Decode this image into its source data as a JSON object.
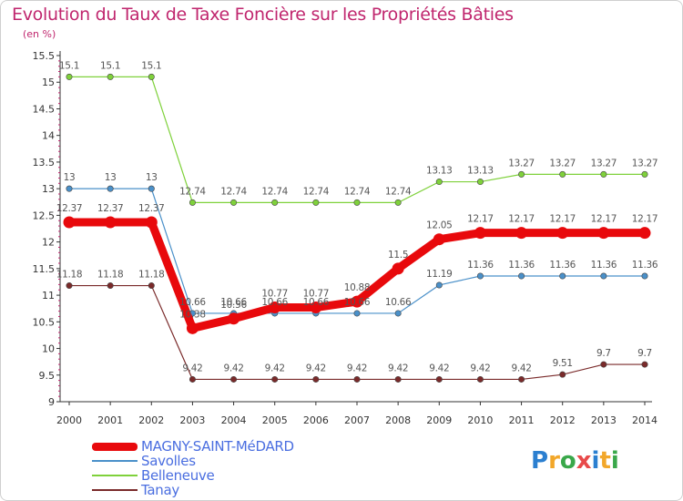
{
  "chart": {
    "title": "Evolution du Taux de Taxe Foncière sur les Propriétés Bâties",
    "unit": "(en %)"
  },
  "brand": {
    "logo_text": "Proxiti",
    "letters": [
      {
        "ch": "P",
        "color": "#2b7fd0"
      },
      {
        "ch": "r",
        "color": "#f2a72a"
      },
      {
        "ch": "o",
        "color": "#3aa84a"
      },
      {
        "ch": "x",
        "color": "#e84a4a"
      },
      {
        "ch": "i",
        "color": "#2b7fd0"
      },
      {
        "ch": "t",
        "color": "#f2a72a"
      },
      {
        "ch": "i",
        "color": "#3aa84a"
      }
    ]
  },
  "chart_data": {
    "type": "line",
    "title": "Evolution du Taux de Taxe Foncière sur les Propriétés Bâties",
    "ylabel": "(en %)",
    "xlabel": "",
    "x": [
      "2000",
      "2001",
      "2002",
      "2003",
      "2004",
      "2005",
      "2006",
      "2007",
      "2008",
      "2009",
      "2010",
      "2011",
      "2012",
      "2013",
      "2014"
    ],
    "ylim": [
      9,
      15.5
    ],
    "yticks": [
      "9",
      "9.5",
      "10",
      "10.5",
      "11",
      "11.5",
      "12",
      "12.5",
      "13",
      "13.5",
      "14",
      "14.5",
      "15",
      "15.5"
    ],
    "grid": false,
    "legend_position": "bottom-left",
    "series": [
      {
        "name": "MAGNY-SAINT-MéDARD",
        "color": "#e8090c",
        "values": [
          12.37,
          12.37,
          12.37,
          10.38,
          10.56,
          10.77,
          10.77,
          10.88,
          11.5,
          12.05,
          12.17,
          12.17,
          12.17,
          12.17,
          12.17
        ],
        "labels": [
          "12.37",
          "12.37",
          "12.37",
          "10.38",
          "10.56",
          "10.77",
          "10.77",
          "10.88",
          "11.5",
          "12.05",
          "12.17",
          "12.17",
          "12.17",
          "12.17",
          "12.17"
        ],
        "emphasis": true
      },
      {
        "name": "Savolles",
        "color": "#4a90c9",
        "values": [
          13,
          13,
          13,
          10.66,
          10.66,
          10.66,
          10.66,
          10.66,
          10.66,
          11.19,
          11.36,
          11.36,
          11.36,
          11.36,
          11.36
        ],
        "labels": [
          "13",
          "13",
          "13",
          "10.66",
          "10.66",
          "10.66",
          "10.66",
          "10.66",
          "10.66",
          "11.19",
          "11.36",
          "11.36",
          "11.36",
          "11.36",
          "11.36"
        ]
      },
      {
        "name": "Belleneuve",
        "color": "#7fd13b",
        "values": [
          15.1,
          15.1,
          15.1,
          12.74,
          12.74,
          12.74,
          12.74,
          12.74,
          12.74,
          13.13,
          13.13,
          13.27,
          13.27,
          13.27,
          13.27
        ],
        "labels": [
          "15.1",
          "15.1",
          "15.1",
          "12.74",
          "12.74",
          "12.74",
          "12.74",
          "12.74",
          "12.74",
          "13.13",
          "13.13",
          "13.27",
          "13.27",
          "13.27",
          "13.27"
        ]
      },
      {
        "name": "Tanay",
        "color": "#7a2a2a",
        "values": [
          11.18,
          11.18,
          11.18,
          9.42,
          9.42,
          9.42,
          9.42,
          9.42,
          9.42,
          9.42,
          9.42,
          9.42,
          9.51,
          9.7,
          9.7
        ],
        "labels": [
          "11.18",
          "11.18",
          "11.18",
          "9.42",
          "9.42",
          "9.42",
          "9.42",
          "9.42",
          "9.42",
          "9.42",
          "9.42",
          "9.42",
          "9.51",
          "9.7",
          "9.7"
        ]
      }
    ]
  }
}
